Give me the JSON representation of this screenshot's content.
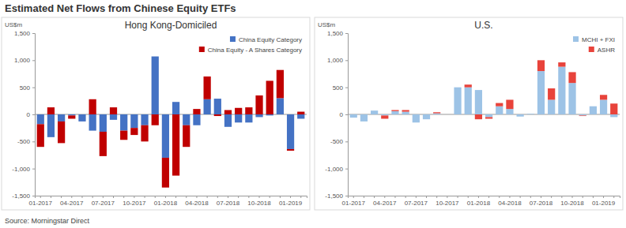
{
  "title": "Estimated Net Flows from Chinese Equity ETFs",
  "source": "Source: Morningstar Direct",
  "chart_data": [
    {
      "type": "bar",
      "stacked": true,
      "legend": "upper right",
      "title": "Hong Kong-Domiciled",
      "y_label": "US$m",
      "categories": [
        "01-2017",
        null,
        null,
        "04-2017",
        null,
        null,
        "07-2017",
        null,
        null,
        "10-2017",
        null,
        null,
        "01-2018",
        null,
        null,
        "04-2018",
        null,
        null,
        "07-2018",
        null,
        null,
        "10-2018",
        null,
        null,
        "01-2019",
        null
      ],
      "series": [
        {
          "name": "China Equity Category",
          "color": "#4472c4",
          "values": [
            -180,
            -420,
            -130,
            -20,
            -130,
            -300,
            -320,
            -100,
            -300,
            -250,
            -200,
            1070,
            -800,
            230,
            -200,
            -200,
            280,
            290,
            -230,
            -150,
            -150,
            -50,
            -20,
            300,
            -640,
            -80
          ]
        },
        {
          "name": "China Equity - A Shares Category",
          "color": "#c00000",
          "values": [
            -420,
            130,
            -400,
            -60,
            0,
            280,
            -450,
            130,
            -170,
            -130,
            -300,
            -200,
            -550,
            -1130,
            -400,
            100,
            420,
            -30,
            80,
            120,
            130,
            350,
            620,
            520,
            -30,
            50
          ]
        }
      ],
      "ylim": [
        -1500,
        1500
      ],
      "yticks": [
        {
          "value": -1500,
          "label": "-1,500"
        },
        {
          "value": -1000,
          "label": "-1,000"
        },
        -500,
        0,
        500,
        {
          "value": 1000,
          "label": "1,000"
        },
        {
          "value": 1500,
          "label": "1,500"
        }
      ]
    },
    {
      "type": "bar",
      "stacked": true,
      "legend": "upper right",
      "title": "U.S.",
      "y_label": "US$m",
      "categories": [
        "01-2017",
        null,
        null,
        "04-2017",
        null,
        null,
        "07-2017",
        null,
        null,
        "10-2017",
        null,
        null,
        "01-2018",
        null,
        null,
        "04-2018",
        null,
        null,
        "07-2018",
        null,
        null,
        "10-2018",
        null,
        null,
        "01-2019",
        null
      ],
      "series": [
        {
          "name": "MCHI + FXI",
          "color": "#9dc3e6",
          "values": [
            -60,
            -130,
            70,
            -20,
            60,
            50,
            -150,
            -90,
            20,
            0,
            500,
            500,
            450,
            -50,
            150,
            100,
            -40,
            10,
            800,
            270,
            880,
            580,
            -20,
            150,
            270,
            -50
          ]
        },
        {
          "name": "ASHR",
          "color": "#e8433b",
          "values": [
            0,
            0,
            0,
            -60,
            20,
            30,
            0,
            0,
            20,
            0,
            0,
            50,
            -90,
            -30,
            60,
            170,
            0,
            0,
            200,
            210,
            80,
            200,
            -10,
            0,
            90,
            200
          ]
        }
      ],
      "ylim": [
        -1500,
        1500
      ],
      "yticks": [
        {
          "value": -1500,
          "label": "-1,500"
        },
        {
          "value": -1000,
          "label": "-1,000"
        },
        -500,
        0,
        500,
        {
          "value": 1000,
          "label": "1,000"
        },
        {
          "value": 1500,
          "label": "1,500"
        }
      ]
    }
  ]
}
